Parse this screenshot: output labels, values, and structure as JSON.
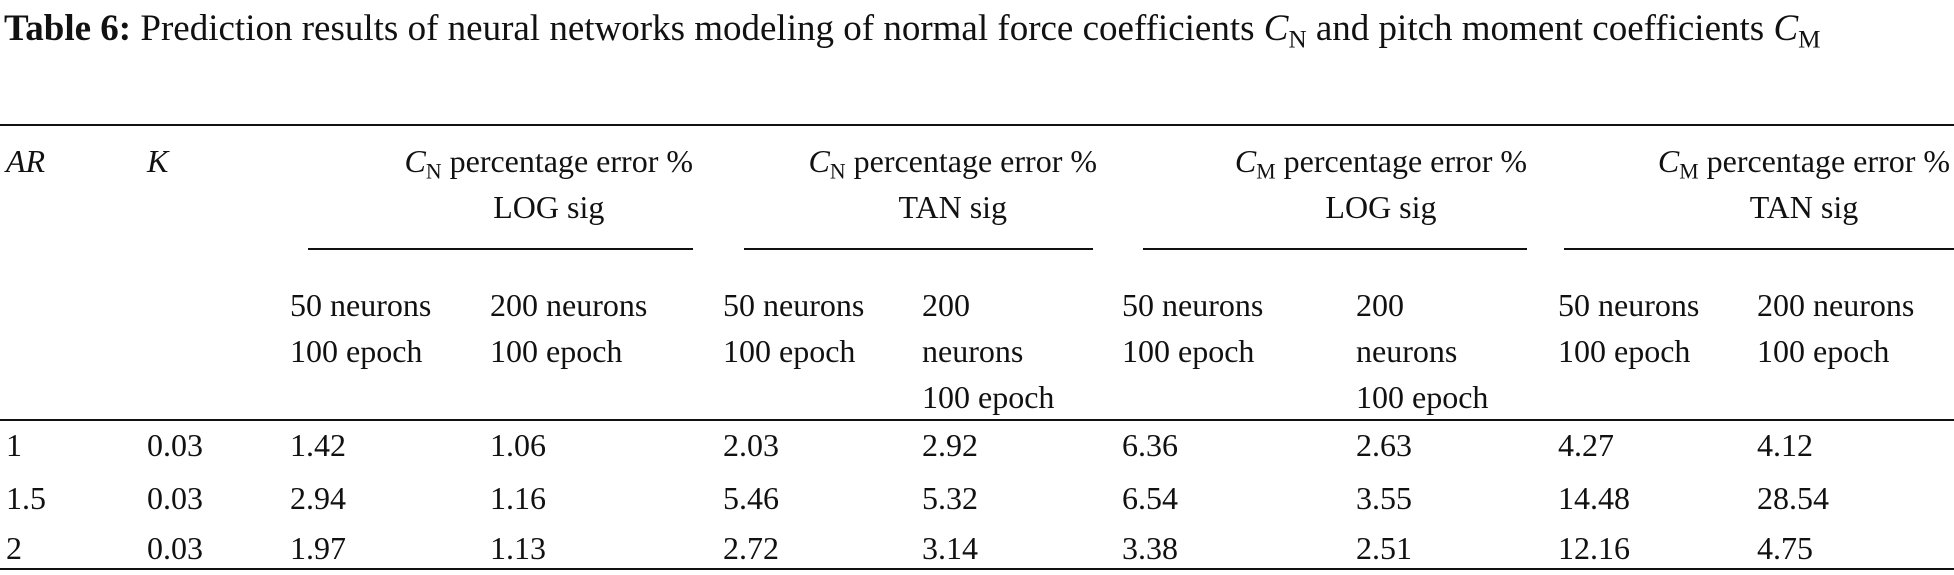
{
  "caption": {
    "label": "Table 6:",
    "parts": [
      "Prediction results of neural networks modeling of normal force coefficients ",
      "C",
      "N",
      " and pitch moment coefficients ",
      "C",
      "M"
    ]
  },
  "table": {
    "columns": [
      "AR",
      "K"
    ],
    "groups": [
      {
        "symbol": "C",
        "sub": "N",
        "text": "percentage error %",
        "activation": "LOG sig"
      },
      {
        "symbol": "C",
        "sub": "N",
        "text": "percentage error %",
        "activation": "TAN sig"
      },
      {
        "symbol": "C",
        "sub": "M",
        "text": "percentage error %",
        "activation": "LOG sig"
      },
      {
        "symbol": "C",
        "sub": "M",
        "text": "percentage error %",
        "activation": "TAN sig"
      }
    ],
    "subheaders": [
      [
        "50 neurons",
        "100 epoch"
      ],
      [
        "200 neurons",
        "100 epoch"
      ],
      [
        "50 neurons",
        "100 epoch"
      ],
      [
        "200",
        "neurons",
        "100 epoch"
      ],
      [
        "50 neurons",
        "100 epoch"
      ],
      [
        "200",
        "neurons",
        "100 epoch"
      ],
      [
        "50 neurons",
        "100 epoch"
      ],
      [
        "200 neurons",
        "100 epoch"
      ]
    ],
    "rows": [
      [
        "1",
        "0.03",
        "1.42",
        "1.06",
        "2.03",
        "2.92",
        "6.36",
        "2.63",
        "4.27",
        "4.12"
      ],
      [
        "1.5",
        "0.03",
        "2.94",
        "1.16",
        "5.46",
        "5.32",
        "6.54",
        "3.55",
        "14.48",
        "28.54"
      ],
      [
        "2",
        "0.03",
        "1.97",
        "1.13",
        "2.72",
        "3.14",
        "3.38",
        "2.51",
        "12.16",
        "4.75"
      ]
    ]
  }
}
